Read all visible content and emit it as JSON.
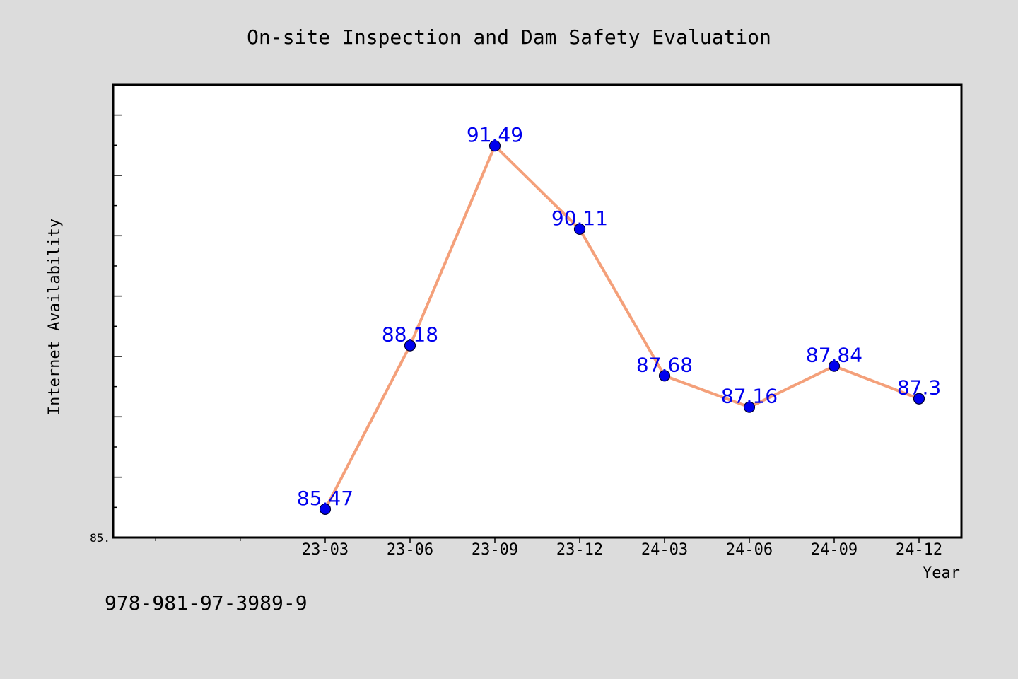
{
  "chart_data": {
    "type": "line",
    "title": "On-site Inspection and Dam Safety Evaluation",
    "xlabel": "Year",
    "ylabel": "Internet Availability",
    "categories": [
      "23-03",
      "23-06",
      "23-09",
      "23-12",
      "24-03",
      "24-06",
      "24-09",
      "24-12"
    ],
    "series": [
      {
        "values": [
          85.47,
          88.18,
          91.49,
          90.11,
          87.68,
          87.16,
          87.84,
          87.3
        ],
        "labels": [
          "85.47",
          "88.18",
          "91.49",
          "90.11",
          "87.68",
          "87.16",
          "87.84",
          "87.3"
        ]
      }
    ],
    "ylim": [
      85.0,
      92.5
    ],
    "y_tick_label": "85.",
    "grid": false,
    "legend": "none",
    "line_color": "#f4a07a",
    "marker_color": "#0000ee",
    "label_color": "#0000ee"
  },
  "footer": {
    "isbn": "978-981-97-3989-9"
  }
}
